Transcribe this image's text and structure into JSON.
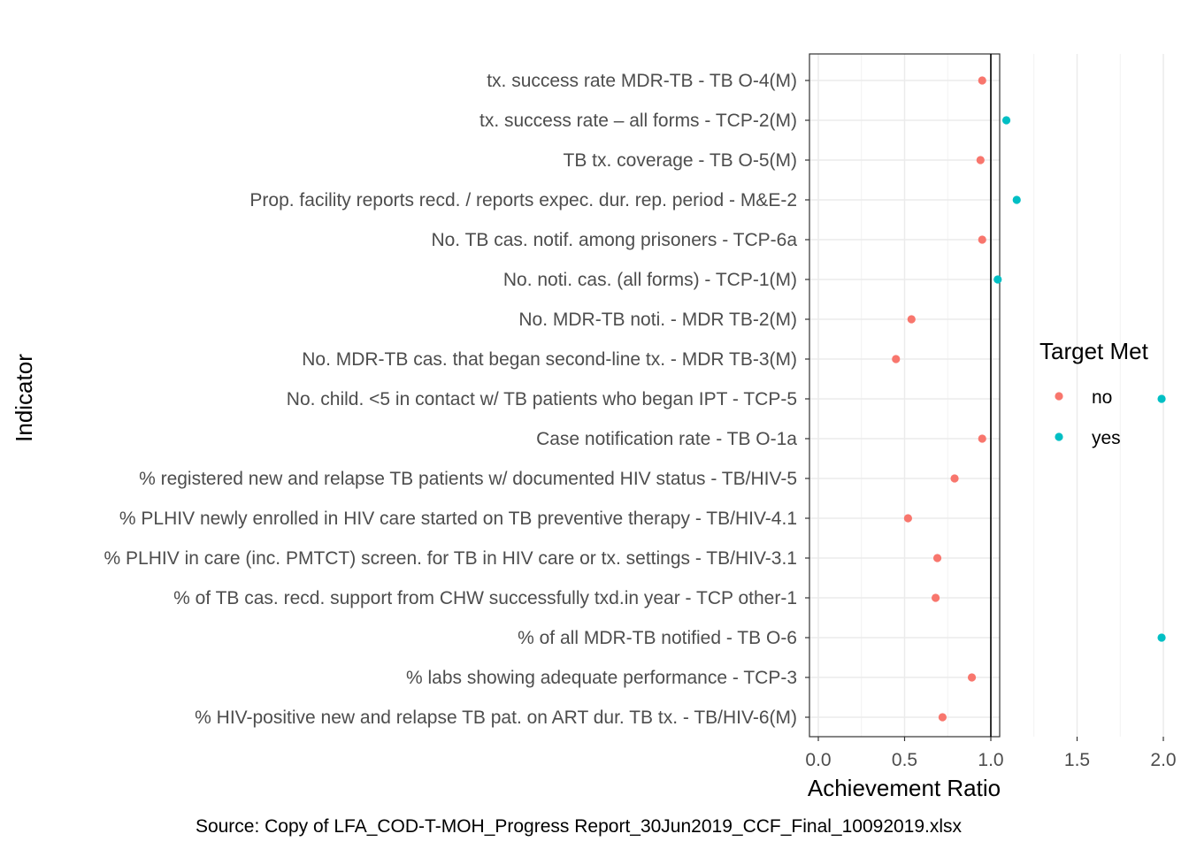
{
  "chart_data": {
    "type": "scatter",
    "xlabel": "Achievement Ratio",
    "ylabel": "Indicator",
    "caption": "Source: Copy of LFA_COD-T-MOH_Progress Report_30Jun2019_CCF_Final_10092019.xlsx",
    "xlim": [
      -0.05,
      2.08
    ],
    "x_ticks": [
      0.0,
      0.5,
      1.0,
      1.5,
      2.0
    ],
    "x_tick_labels": [
      "0.0",
      "0.5",
      "1.0",
      "1.5",
      "2.0"
    ],
    "reference_line_x": 1.0,
    "grid": true,
    "legend": {
      "title": "Target Met",
      "position": "right",
      "entries": [
        {
          "label": "no",
          "color": "#F8766D"
        },
        {
          "label": "yes",
          "color": "#00BFC4"
        }
      ]
    },
    "points": [
      {
        "indicator": "tx. success rate MDR-TB - TB O-4(M)",
        "x": 0.95,
        "target_met": "no"
      },
      {
        "indicator": "tx. success rate – all forms - TCP-2(M)",
        "x": 1.09,
        "target_met": "yes"
      },
      {
        "indicator": "TB tx. coverage - TB O-5(M)",
        "x": 0.94,
        "target_met": "no"
      },
      {
        "indicator": "Prop. facility reports recd. / reports expec. dur. rep. period - M&E-2",
        "x": 1.15,
        "target_met": "yes"
      },
      {
        "indicator": "No. TB cas. notif. among prisoners - TCP-6a",
        "x": 0.95,
        "target_met": "no"
      },
      {
        "indicator": "No. noti. cas.  (all forms) - TCP-1(M)",
        "x": 1.04,
        "target_met": "yes"
      },
      {
        "indicator": "No. MDR-TB noti. - MDR TB-2(M)",
        "x": 0.54,
        "target_met": "no"
      },
      {
        "indicator": "No. MDR-TB cas.  that began second-line tx. - MDR TB-3(M)",
        "x": 0.45,
        "target_met": "no"
      },
      {
        "indicator": "No. child. <5 in contact w/ TB patients who began IPT - TCP-5",
        "x": 1.99,
        "target_met": "yes"
      },
      {
        "indicator": "Case notification rate - TB O-1a",
        "x": 0.95,
        "target_met": "no"
      },
      {
        "indicator": "% registered new and relapse TB patients w/ documented HIV status - TB/HIV-5",
        "x": 0.79,
        "target_met": "no"
      },
      {
        "indicator": "% PLHIV newly enrolled in HIV care started on TB preventive therapy - TB/HIV-4.1",
        "x": 0.52,
        "target_met": "no"
      },
      {
        "indicator": "% PLHIV in care (inc. PMTCT) screen. for TB in HIV care or tx. settings - TB/HIV-3.1",
        "x": 0.69,
        "target_met": "no"
      },
      {
        "indicator": "% of TB cas. recd. support from CHW successfully txd.in year - TCP other-1",
        "x": 0.68,
        "target_met": "no"
      },
      {
        "indicator": "% of all MDR-TB notified - TB O-6",
        "x": 1.99,
        "target_met": "yes"
      },
      {
        "indicator": "% labs showing adequate performance - TCP-3",
        "x": 0.89,
        "target_met": "no"
      },
      {
        "indicator": "% HIV-positive new and relapse TB pat. on ART dur. TB tx. - TB/HIV-6(M)",
        "x": 0.72,
        "target_met": "no"
      }
    ]
  }
}
